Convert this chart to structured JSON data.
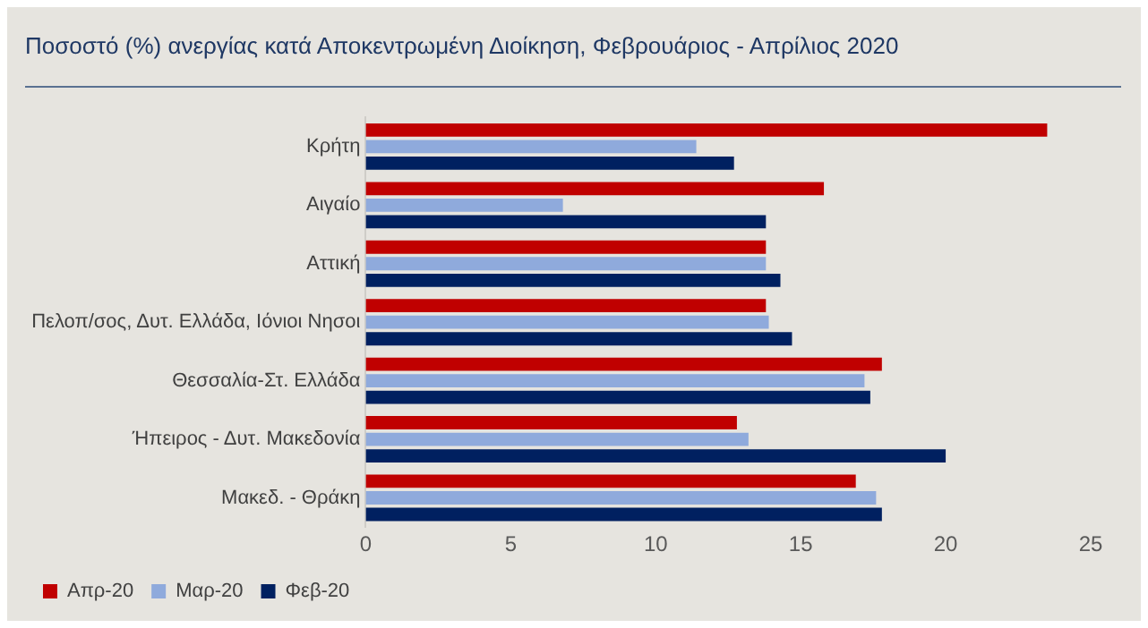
{
  "chart_data": {
    "type": "bar",
    "orientation": "horizontal",
    "title": "Ποσοστό (%) ανεργίας κατά Αποκεντρωμένη Διοίκηση, Φεβρουάριος - Απρίλιος 2020",
    "categories": [
      "Κρήτη",
      "Αιγαίο",
      "Αττική",
      "Πελοπ/σος, Δυτ. Ελλάδα, Ιόνιοι Νησοι",
      "Θεσσαλία-Στ. Ελλάδα",
      "Ήπειρος - Δυτ. Μακεδονία",
      "Μακεδ. - Θράκη"
    ],
    "series": [
      {
        "name": "Απρ-20",
        "color": "#c00000",
        "values": [
          23.5,
          15.8,
          13.8,
          13.8,
          17.8,
          12.8,
          16.9
        ]
      },
      {
        "name": "Μαρ-20",
        "color": "#8faadc",
        "values": [
          11.4,
          6.8,
          13.8,
          13.9,
          17.2,
          13.2,
          17.6
        ]
      },
      {
        "name": "Φεβ-20",
        "color": "#002060",
        "values": [
          12.7,
          13.8,
          14.3,
          14.7,
          17.4,
          20.0,
          17.8
        ]
      }
    ],
    "xlim": [
      0,
      25
    ],
    "xticks": [
      0,
      5,
      10,
      15,
      20,
      25
    ],
    "grid": false,
    "legend": "bottom left"
  }
}
